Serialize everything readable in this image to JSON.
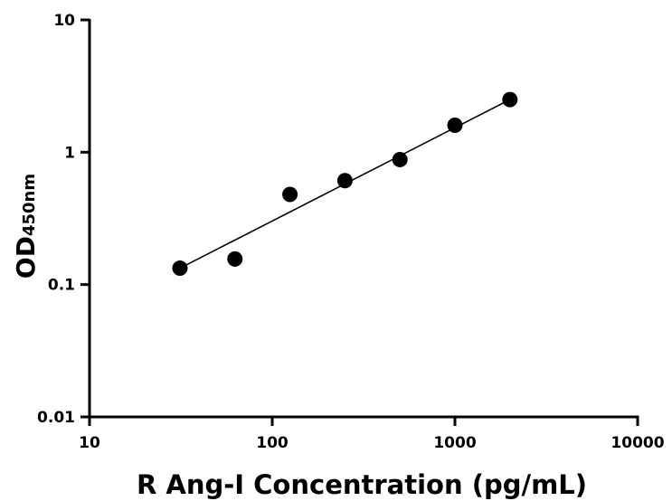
{
  "chart_data": {
    "type": "scatter",
    "xlabel": "R Ang-I Concentration (pg/mL)",
    "ylabel_main": "OD",
    "ylabel_sub": "450nm",
    "x_scale": "log",
    "y_scale": "log",
    "xlim": [
      10,
      10000
    ],
    "ylim": [
      0.01,
      10
    ],
    "x_ticks": [
      {
        "value": 10,
        "label": "10"
      },
      {
        "value": 100,
        "label": "100"
      },
      {
        "value": 1000,
        "label": "1000"
      },
      {
        "value": 10000,
        "label": "10000"
      }
    ],
    "y_ticks": [
      {
        "value": 0.01,
        "label": "0.01"
      },
      {
        "value": 0.1,
        "label": "0.1"
      },
      {
        "value": 1,
        "label": "1"
      },
      {
        "value": 10,
        "label": "10"
      }
    ],
    "grid": false,
    "legend": "none",
    "series": [
      {
        "points": [
          {
            "x": 31.25,
            "y": 0.133
          },
          {
            "x": 62.5,
            "y": 0.156
          },
          {
            "x": 125,
            "y": 0.48
          },
          {
            "x": 250,
            "y": 0.61
          },
          {
            "x": 500,
            "y": 0.88
          },
          {
            "x": 1000,
            "y": 1.6
          },
          {
            "x": 2000,
            "y": 2.5
          }
        ],
        "fit_line": {
          "x_start": 31.25,
          "y_start": 0.133,
          "x_end": 2000,
          "y_end": 2.5
        }
      }
    ],
    "colors": {
      "marker": "#000000",
      "line": "#000000",
      "axis": "#000000"
    }
  }
}
